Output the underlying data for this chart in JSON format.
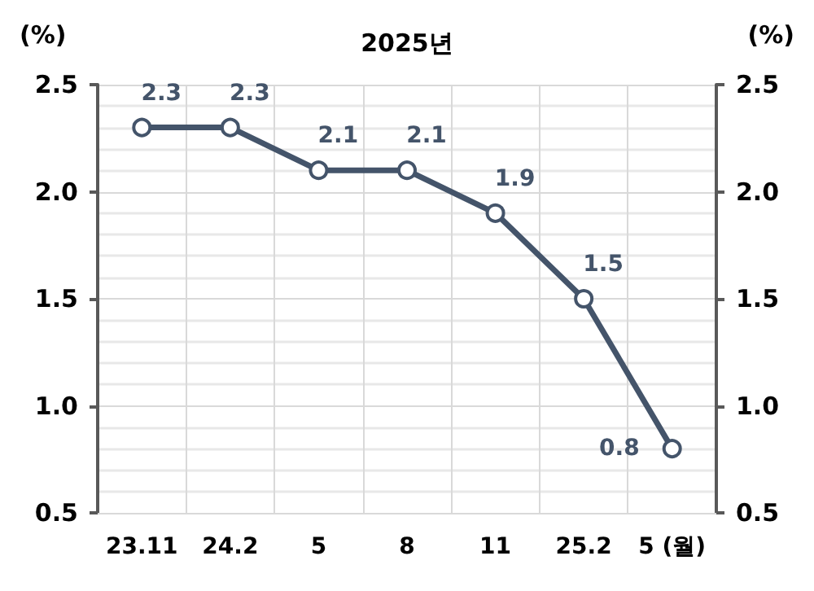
{
  "chart_data": {
    "type": "line",
    "title": "2025년",
    "ylabel": "(%)",
    "y2label": "(%)",
    "categories": [
      "23.11",
      "24.2",
      "5",
      "8",
      "11",
      "25.2",
      "5 (월)"
    ],
    "series": [
      {
        "color": "#44546a",
        "values": [
          2.3,
          2.3,
          2.1,
          2.1,
          1.9,
          1.5,
          0.8
        ]
      }
    ],
    "ylim": [
      0.5,
      2.5
    ],
    "yticks": [
      {
        "value": 0.5,
        "label": "0.5"
      },
      {
        "value": 1.0,
        "label": "1.0"
      },
      {
        "value": 1.5,
        "label": "1.5"
      },
      {
        "value": 2.0,
        "label": "2.0"
      },
      {
        "value": 2.5,
        "label": "2.5"
      }
    ],
    "y2lim": [
      0.5,
      2.5
    ],
    "y2ticks": [
      {
        "value": 0.5,
        "label": "0.5"
      },
      {
        "value": 1.0,
        "label": "1.0"
      },
      {
        "value": 1.5,
        "label": "1.5"
      },
      {
        "value": 2.0,
        "label": "2.0"
      },
      {
        "value": 2.5,
        "label": "2.5"
      }
    ],
    "grid": true,
    "marker": "circle",
    "line_style": "solid",
    "data_labels": true
  }
}
